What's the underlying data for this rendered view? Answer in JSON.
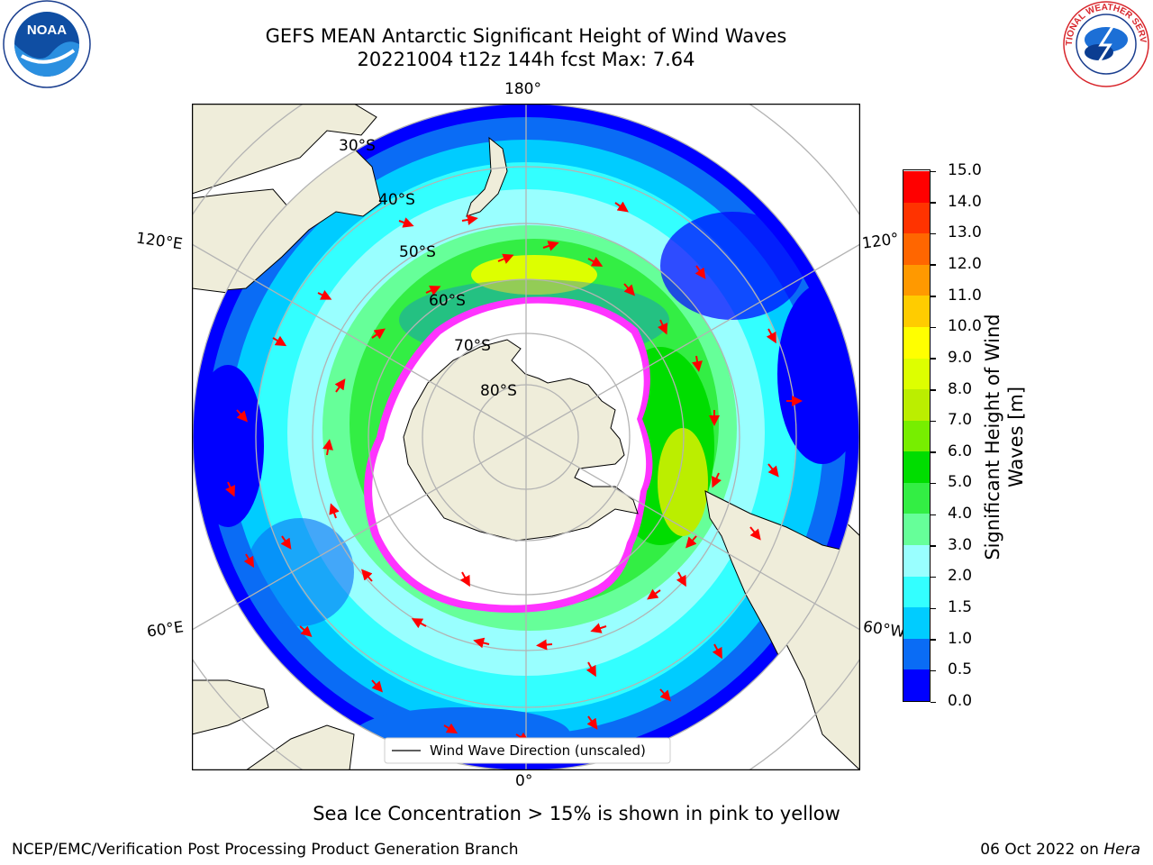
{
  "title": {
    "line1": "GEFS MEAN Antarctic Significant Height of Wind Waves",
    "line2": "20221004 t12z 144h fcst   Max: 7.64"
  },
  "map": {
    "longitude_labels": {
      "top": "180°",
      "bottom": "0°",
      "left_upper": "120°E",
      "left_lower": "60°E",
      "right_upper": "120°",
      "right_lower": "60°W"
    },
    "latitude_labels": [
      "30°S",
      "40°S",
      "50°S",
      "60°S",
      "70°S",
      "80°S"
    ],
    "legend": "Wind Wave Direction (unscaled)",
    "colors": {
      "land": "#efedda",
      "ice": "#ffffff",
      "ice_edge": "#ff33ff",
      "arrow": "#ff0000",
      "grid": "#b3b3b3"
    }
  },
  "colorbar": {
    "label_line1": "Significant Height of Wind",
    "label_line2": "Waves [m]",
    "ticks": [
      "0.0",
      "0.5",
      "1.0",
      "1.5",
      "2.0",
      "3.0",
      "4.0",
      "5.0",
      "6.0",
      "7.0",
      "8.0",
      "9.0",
      "10.0",
      "11.0",
      "12.0",
      "13.0",
      "14.0",
      "15.0"
    ],
    "colors": [
      "#0000ff",
      "#0a6cf5",
      "#00ccff",
      "#33ffff",
      "#99ffff",
      "#66ff99",
      "#33ee44",
      "#00dd00",
      "#77ee00",
      "#bbee00",
      "#ddff00",
      "#ffff00",
      "#ffcc00",
      "#ff9900",
      "#ff6600",
      "#ff3300",
      "#ff0000"
    ]
  },
  "notes": {
    "sea_ice": "Sea Ice Concentration > 15% is shown in pink to yellow",
    "credit": "NCEP/EMC/Verification Post Processing Product Generation Branch",
    "date": "06 Oct 2022 on",
    "machine": "Hera"
  },
  "logos": {
    "left": "NOAA",
    "right": "NATIONAL WEATHER SERVICE"
  }
}
